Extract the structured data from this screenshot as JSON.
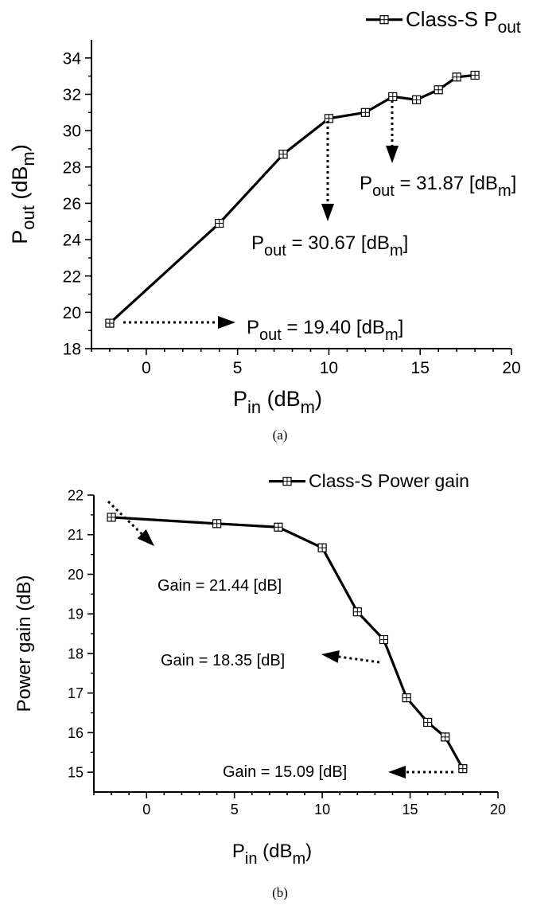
{
  "chart_data": [
    {
      "type": "line",
      "panel_label": "(a)",
      "x_label": {
        "main": "P",
        "sub": "in",
        "unit_main": " (dB",
        "unit_sub": "m",
        "unit_end": ")"
      },
      "y_label": {
        "main": "P",
        "sub": "out",
        "unit_main": " (dB",
        "unit_sub": "m",
        "unit_end": ")"
      },
      "xlim": [
        -3,
        20
      ],
      "ylim": [
        18,
        35
      ],
      "x_ticks": [
        0,
        5,
        10,
        15,
        20
      ],
      "y_ticks": [
        18,
        20,
        22,
        24,
        26,
        28,
        30,
        32,
        34
      ],
      "series": [
        {
          "name": {
            "main": "Class-S P",
            "sub": "out"
          },
          "marker": "square-grid",
          "points": [
            [
              -2,
              19.4
            ],
            [
              4,
              24.9
            ],
            [
              7.5,
              28.7
            ],
            [
              10,
              30.67
            ],
            [
              12,
              31.0
            ],
            [
              13.5,
              31.87
            ],
            [
              14.8,
              31.7
            ],
            [
              16,
              32.25
            ],
            [
              17,
              32.95
            ],
            [
              18,
              33.05
            ]
          ]
        }
      ],
      "legend_position": "top-right",
      "annotations": [
        {
          "text": {
            "main": "P",
            "sub": "out",
            "eq": " = 19.40 [dB",
            "unit_sub": "m",
            "end": "]"
          },
          "point": [
            -2,
            19.4
          ]
        },
        {
          "text": {
            "main": "P",
            "sub": "out",
            "eq": " = 30.67 [dB",
            "unit_sub": "m",
            "end": "]"
          },
          "point": [
            10,
            30.67
          ]
        },
        {
          "text": {
            "main": "P",
            "sub": "out",
            "eq": " = 31.87 [dB",
            "unit_sub": "m",
            "end": "]"
          },
          "point": [
            13.5,
            31.87
          ]
        }
      ]
    },
    {
      "type": "line",
      "panel_label": "(b)",
      "x_label": {
        "main": "P",
        "sub": "in",
        "unit_main": " (dB",
        "unit_sub": "m",
        "unit_end": ")"
      },
      "y_label": {
        "main": "Power gain (dB)",
        "sub": "",
        "unit_main": "",
        "unit_sub": "",
        "unit_end": ""
      },
      "xlim": [
        -3,
        20
      ],
      "ylim": [
        14.5,
        22
      ],
      "x_ticks": [
        0,
        5,
        10,
        15,
        20
      ],
      "y_ticks": [
        15,
        16,
        17,
        18,
        19,
        20,
        21,
        22
      ],
      "series": [
        {
          "name": {
            "main": "Class-S Power gain",
            "sub": ""
          },
          "marker": "square-grid",
          "points": [
            [
              -2,
              21.44
            ],
            [
              4,
              21.28
            ],
            [
              7.5,
              21.19
            ],
            [
              10,
              20.67
            ],
            [
              12,
              19.05
            ],
            [
              13.5,
              18.35
            ],
            [
              14.8,
              16.88
            ],
            [
              16,
              16.26
            ],
            [
              17,
              15.89
            ],
            [
              18,
              15.09
            ]
          ]
        }
      ],
      "legend_position": "top-right",
      "annotations": [
        {
          "text": {
            "main": "Gain = 21.44 [dB]"
          },
          "point": [
            -2,
            21.44
          ]
        },
        {
          "text": {
            "main": "Gain = 18.35 [dB]"
          },
          "point": [
            13.5,
            18.35
          ]
        },
        {
          "text": {
            "main": "Gain = 15.09 [dB]"
          },
          "point": [
            18,
            15.09
          ]
        }
      ]
    }
  ]
}
